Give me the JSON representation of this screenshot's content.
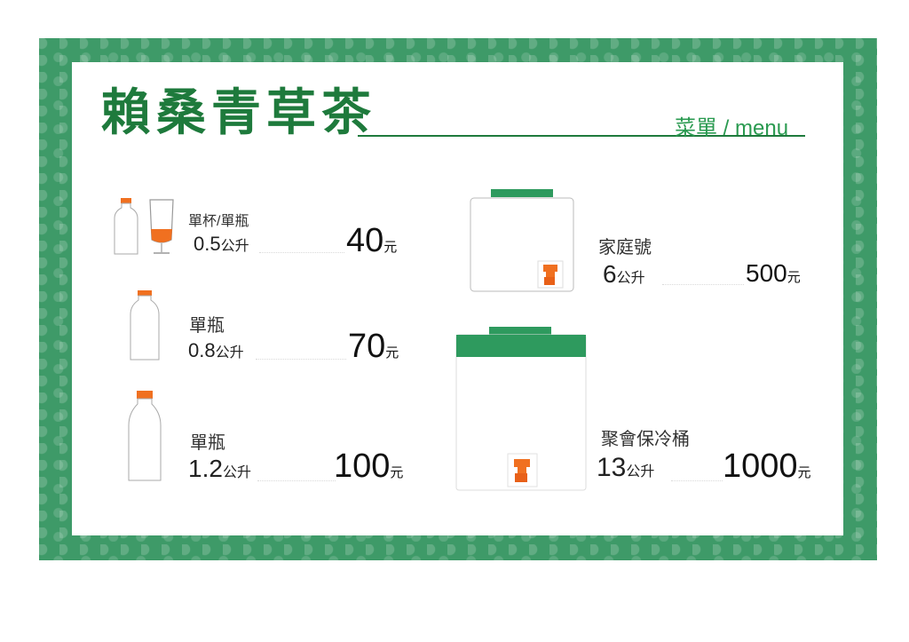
{
  "header": {
    "title": "賴桑青草茶",
    "subtitle": "菜單 / menu"
  },
  "items": [
    {
      "label": "單杯/單瓶",
      "volume": "0.5",
      "volume_unit": "公升",
      "price": "40",
      "currency": "元"
    },
    {
      "label": "單瓶",
      "volume": "0.8",
      "volume_unit": "公升",
      "price": "70",
      "currency": "元"
    },
    {
      "label": "單瓶",
      "volume": "1.2",
      "volume_unit": "公升",
      "price": "100",
      "currency": "元"
    },
    {
      "label": "家庭號",
      "volume": "6",
      "volume_unit": "公升",
      "price": "500",
      "currency": "元"
    },
    {
      "label": "聚會保冷桶",
      "volume": "13",
      "volume_unit": "公升",
      "price": "1000",
      "currency": "元"
    }
  ],
  "colors": {
    "frame_green": "#3e9a68",
    "title_green": "#1e7a3c",
    "cap_orange": "#f07020",
    "lid_green": "#2e9a5e"
  },
  "icons": [
    "bottle-icon",
    "cup-icon",
    "water-jug-icon",
    "cooler-bucket-icon",
    "spigot-icon"
  ]
}
